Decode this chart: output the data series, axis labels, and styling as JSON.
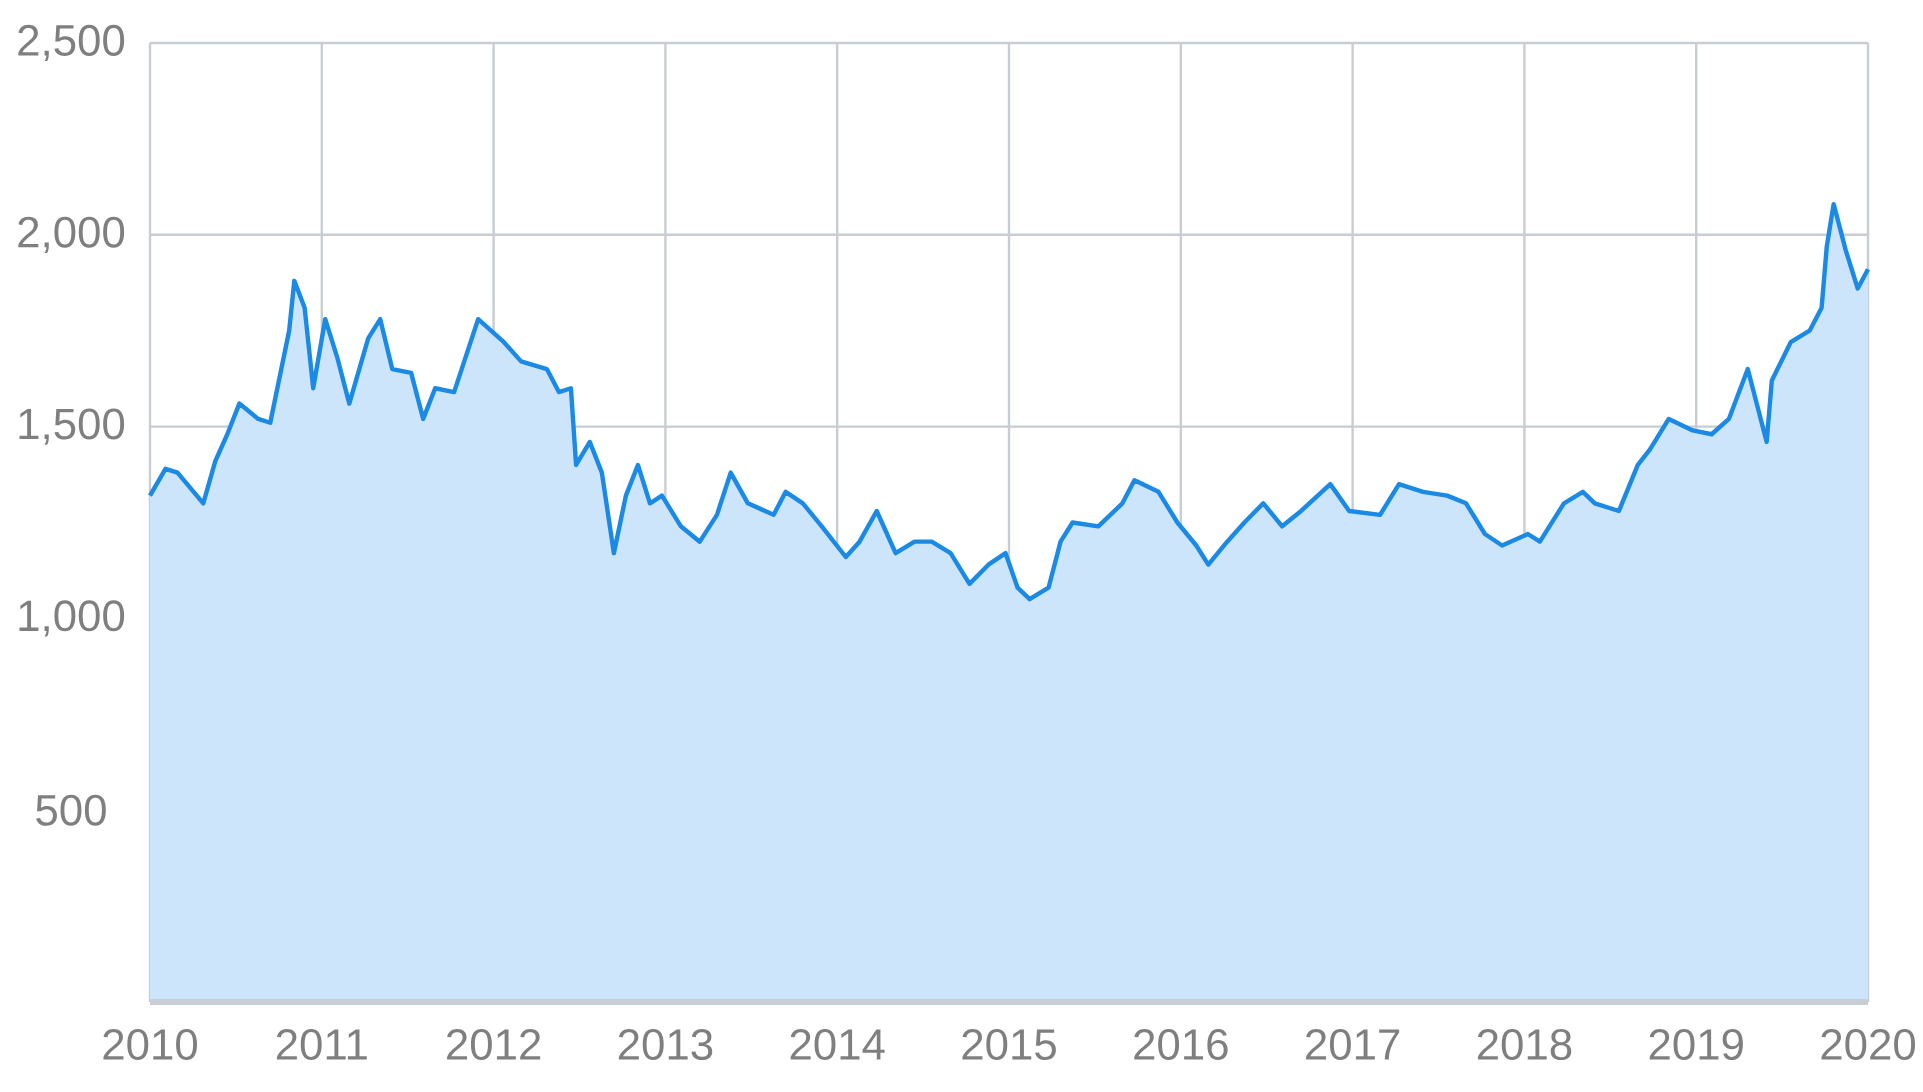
{
  "chart_data": {
    "type": "area",
    "color": "#1a8ae6",
    "x": [
      2010.0,
      2010.09,
      2010.16,
      2010.31,
      2010.38,
      2010.45,
      2010.52,
      2010.63,
      2010.7,
      2010.81,
      2010.84,
      2010.9,
      2010.95,
      2011.02,
      2011.09,
      2011.16,
      2011.27,
      2011.34,
      2011.41,
      2011.52,
      2011.59,
      2011.66,
      2011.77,
      2011.91,
      2012.06,
      2012.16,
      2012.31,
      2012.38,
      2012.45,
      2012.48,
      2012.56,
      2012.63,
      2012.7,
      2012.77,
      2012.84,
      2012.91,
      2012.98,
      2013.09,
      2013.2,
      2013.3,
      2013.38,
      2013.48,
      2013.63,
      2013.7,
      2013.8,
      2013.91,
      2014.05,
      2014.13,
      2014.23,
      2014.34,
      2014.45,
      2014.55,
      2014.66,
      2014.77,
      2014.88,
      2014.98,
      2015.05,
      2015.12,
      2015.23,
      2015.3,
      2015.37,
      2015.52,
      2015.66,
      2015.73,
      2015.87,
      2015.98,
      2016.09,
      2016.16,
      2016.27,
      2016.37,
      2016.48,
      2016.59,
      2016.7,
      2016.87,
      2016.98,
      2017.16,
      2017.27,
      2017.41,
      2017.55,
      2017.66,
      2017.77,
      2017.87,
      2018.02,
      2018.09,
      2018.23,
      2018.34,
      2018.41,
      2018.55,
      2018.66,
      2018.73,
      2018.84,
      2018.98,
      2019.09,
      2019.19,
      2019.3,
      2019.41,
      2019.44,
      2019.55,
      2019.66,
      2019.73,
      2019.76,
      2019.8,
      2019.87,
      2019.94,
      2020.0
    ],
    "values": [
      1320,
      1390,
      1380,
      1300,
      1410,
      1480,
      1560,
      1520,
      1510,
      1750,
      1880,
      1810,
      1600,
      1780,
      1680,
      1560,
      1730,
      1780,
      1650,
      1640,
      1520,
      1600,
      1590,
      1780,
      1720,
      1670,
      1650,
      1590,
      1600,
      1400,
      1460,
      1380,
      1170,
      1320,
      1400,
      1300,
      1320,
      1240,
      1200,
      1270,
      1380,
      1300,
      1270,
      1330,
      1300,
      1240,
      1160,
      1200,
      1280,
      1170,
      1200,
      1200,
      1170,
      1090,
      1140,
      1170,
      1080,
      1050,
      1080,
      1200,
      1250,
      1240,
      1300,
      1360,
      1330,
      1250,
      1190,
      1140,
      1200,
      1250,
      1300,
      1240,
      1280,
      1350,
      1280,
      1270,
      1350,
      1330,
      1320,
      1300,
      1220,
      1190,
      1220,
      1200,
      1300,
      1330,
      1300,
      1280,
      1400,
      1440,
      1520,
      1490,
      1480,
      1520,
      1650,
      1460,
      1620,
      1720,
      1750,
      1810,
      1970,
      2080,
      1960,
      1860,
      1910
    ],
    "xlim": [
      2010,
      2020
    ],
    "xticks": [
      2010,
      2011,
      2012,
      2013,
      2014,
      2015,
      2016,
      2017,
      2018,
      2019,
      2020
    ],
    "ylim": [
      0,
      2500
    ],
    "yticks": [
      {
        "value": 500,
        "label": "500"
      },
      {
        "value": 1000,
        "label": "1,000"
      },
      {
        "value": 1500,
        "label": "1,500"
      },
      {
        "value": 2000,
        "label": "2,000"
      },
      {
        "value": 2500,
        "label": "2,500"
      }
    ],
    "grid": true
  }
}
